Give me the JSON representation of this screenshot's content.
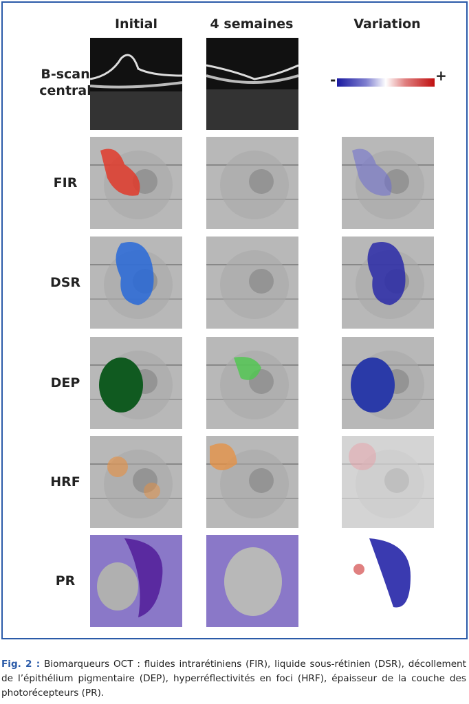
{
  "figure": {
    "column_headers": [
      "Initial",
      "4 semaines",
      "Variation"
    ],
    "row_labels": [
      "B-scan central",
      "FIR",
      "DSR",
      "DEP",
      "HRF",
      "PR"
    ],
    "colorbar": {
      "min_label": "-",
      "max_label": "+"
    }
  },
  "caption": {
    "label": "Fig. 2 :",
    "text": "Biomarqueurs OCT : fluides intrarétiniens (FIR), liquide sous-rétinien (DSR), décollement de l’épithélium pigmentaire (DEP), hyperréflectivités en foci (HRF), épaisseur de la couche des photorécepteurs (PR)."
  }
}
